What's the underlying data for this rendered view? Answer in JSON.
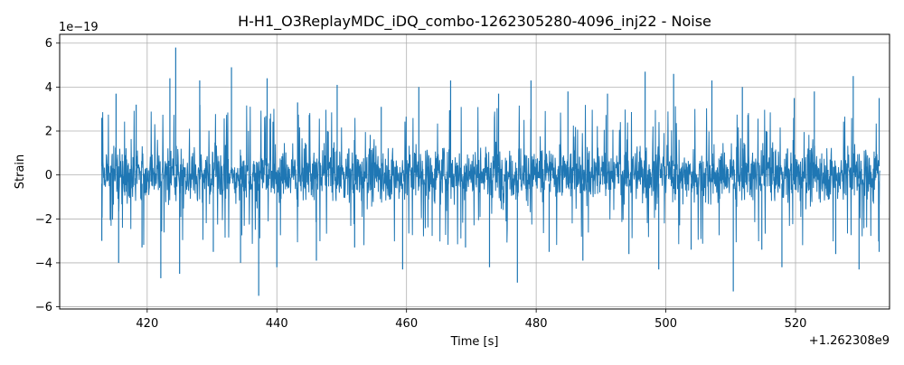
{
  "chart_data": {
    "type": "line",
    "title": "H-H1_O3ReplayMDC_iDQ_combo-1262305280-4096_inj22 - Noise",
    "xlabel": "Time [s]",
    "ylabel": "Strain",
    "x_offset_label": "+1.262308e9",
    "y_scale_label": "1e−19",
    "xlim": [
      406.5,
      534.5
    ],
    "ylim": [
      -6.1,
      6.4
    ],
    "x_ticks": [
      420,
      440,
      460,
      480,
      500,
      520
    ],
    "x_tick_labels": [
      "420",
      "440",
      "460",
      "480",
      "500",
      "520"
    ],
    "y_ticks": [
      -6,
      -4,
      -2,
      0,
      2,
      4,
      6
    ],
    "y_tick_labels": [
      "−6",
      "−4",
      "−2",
      "0",
      "2",
      "4",
      "6"
    ],
    "grid": true,
    "series": [
      {
        "color": "#1f77b4",
        "x_start": 413,
        "x_end": 533,
        "typical_band": [
          -1.4,
          1.5
        ],
        "peaks": [
          {
            "x": 413.0,
            "y": 2.6
          },
          {
            "x": 413.0,
            "y": -3.0
          },
          {
            "x": 415.2,
            "y": 3.7
          },
          {
            "x": 415.6,
            "y": -4.0
          },
          {
            "x": 418.3,
            "y": 3.2
          },
          {
            "x": 419.2,
            "y": -3.3
          },
          {
            "x": 422.1,
            "y": -4.7
          },
          {
            "x": 423.5,
            "y": 4.4
          },
          {
            "x": 424.4,
            "y": 5.8
          },
          {
            "x": 425.0,
            "y": -4.5
          },
          {
            "x": 428.1,
            "y": 4.3
          },
          {
            "x": 430.2,
            "y": -3.5
          },
          {
            "x": 433.0,
            "y": 4.9
          },
          {
            "x": 434.4,
            "y": -4.0
          },
          {
            "x": 437.2,
            "y": -5.5
          },
          {
            "x": 438.5,
            "y": 4.4
          },
          {
            "x": 440.0,
            "y": -4.2
          },
          {
            "x": 443.2,
            "y": 3.3
          },
          {
            "x": 446.1,
            "y": -3.9
          },
          {
            "x": 449.3,
            "y": 4.1
          },
          {
            "x": 452.0,
            "y": -3.3
          },
          {
            "x": 456.1,
            "y": 3.1
          },
          {
            "x": 459.4,
            "y": -4.3
          },
          {
            "x": 461.9,
            "y": 4.0
          },
          {
            "x": 466.8,
            "y": 4.3
          },
          {
            "x": 469.1,
            "y": -3.3
          },
          {
            "x": 472.8,
            "y": -4.2
          },
          {
            "x": 474.2,
            "y": 3.7
          },
          {
            "x": 477.1,
            "y": -4.9
          },
          {
            "x": 479.2,
            "y": 4.3
          },
          {
            "x": 482.0,
            "y": -3.5
          },
          {
            "x": 484.9,
            "y": 3.8
          },
          {
            "x": 487.2,
            "y": -3.9
          },
          {
            "x": 491.0,
            "y": 3.7
          },
          {
            "x": 494.3,
            "y": -3.6
          },
          {
            "x": 496.8,
            "y": 4.7
          },
          {
            "x": 498.9,
            "y": -4.3
          },
          {
            "x": 501.2,
            "y": 4.6
          },
          {
            "x": 503.9,
            "y": -3.4
          },
          {
            "x": 507.1,
            "y": 4.3
          },
          {
            "x": 510.4,
            "y": -5.3
          },
          {
            "x": 511.8,
            "y": 4.0
          },
          {
            "x": 514.8,
            "y": -3.4
          },
          {
            "x": 517.9,
            "y": -4.2
          },
          {
            "x": 519.8,
            "y": 3.5
          },
          {
            "x": 522.9,
            "y": 3.8
          },
          {
            "x": 526.2,
            "y": -3.6
          },
          {
            "x": 528.9,
            "y": 4.5
          },
          {
            "x": 529.8,
            "y": -4.3
          },
          {
            "x": 532.9,
            "y": 3.5
          },
          {
            "x": 532.9,
            "y": -3.5
          }
        ]
      }
    ]
  }
}
